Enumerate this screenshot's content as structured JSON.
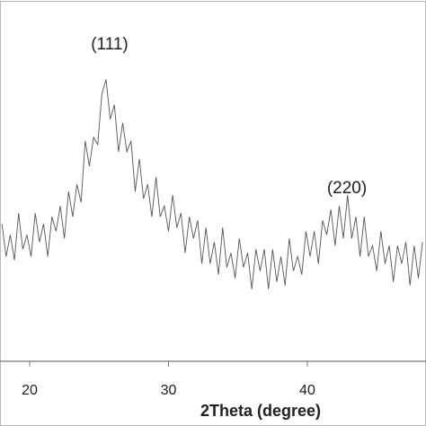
{
  "chart_data": {
    "type": "line",
    "x_label": "2Theta (degree)",
    "annotations": [
      "(111)",
      "(220)"
    ],
    "xlim": [
      17.86,
      48.55
    ],
    "xticks": [
      20,
      30,
      40
    ],
    "ylim": [
      0,
      100
    ],
    "series": [
      {
        "color": "#555555",
        "x": [
          18.0,
          18.3,
          18.6,
          18.9,
          19.2,
          19.5,
          19.8,
          20.1,
          20.4,
          20.7,
          21.0,
          21.3,
          21.6,
          21.9,
          22.2,
          22.5,
          22.8,
          23.1,
          23.4,
          23.7,
          24.0,
          24.3,
          24.6,
          24.9,
          25.2,
          25.5,
          25.8,
          26.1,
          26.4,
          26.7,
          27.0,
          27.3,
          27.6,
          27.9,
          28.2,
          28.5,
          28.8,
          29.1,
          29.4,
          29.7,
          30.0,
          30.3,
          30.6,
          30.9,
          31.2,
          31.5,
          31.8,
          32.1,
          32.4,
          32.7,
          33.0,
          33.3,
          33.6,
          33.9,
          34.2,
          34.5,
          34.8,
          35.1,
          35.4,
          35.7,
          36.0,
          36.3,
          36.6,
          36.9,
          37.2,
          37.5,
          37.8,
          38.1,
          38.4,
          38.7,
          39.0,
          39.3,
          39.6,
          39.9,
          40.2,
          40.5,
          40.8,
          41.1,
          41.4,
          41.7,
          42.0,
          42.3,
          42.6,
          42.9,
          43.2,
          43.5,
          43.8,
          44.1,
          44.4,
          44.7,
          45.0,
          45.3,
          45.6,
          45.9,
          46.2,
          46.5,
          46.8,
          47.1,
          47.4,
          47.7,
          48.0,
          48.3
        ],
        "values": [
          38,
          29,
          35,
          28,
          41,
          31,
          35,
          29,
          41,
          33,
          38,
          29,
          40,
          36,
          43,
          34,
          47,
          40,
          49,
          44,
          61,
          54,
          62,
          60,
          74,
          78,
          67,
          71,
          58,
          66,
          58,
          61,
          47,
          56,
          45,
          49,
          40,
          51,
          40,
          43,
          36,
          46,
          37,
          41,
          30,
          40,
          34,
          39,
          27,
          37,
          27,
          33,
          24,
          37,
          26,
          30,
          23,
          34,
          26,
          30,
          20,
          31,
          25,
          31,
          20,
          31,
          22,
          29,
          21,
          34,
          25,
          29,
          24,
          36,
          29,
          36,
          27,
          39,
          35,
          42,
          32,
          43,
          34,
          46,
          34,
          40,
          29,
          40,
          29,
          32,
          25,
          36,
          27,
          32,
          22,
          32,
          27,
          33,
          21,
          32,
          23,
          33
        ]
      }
    ]
  }
}
